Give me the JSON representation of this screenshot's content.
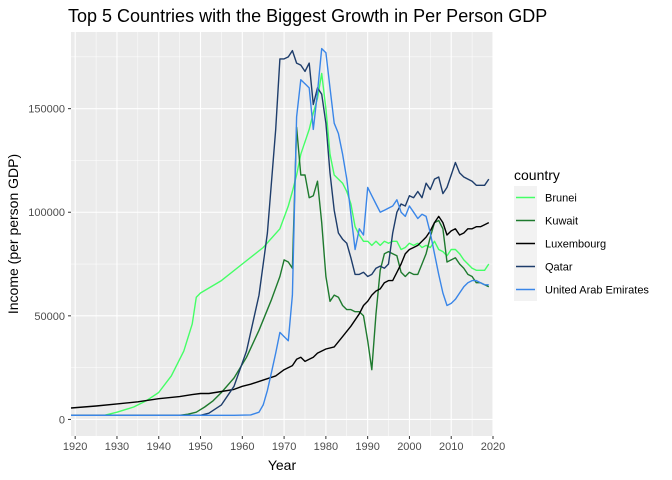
{
  "chart_data": {
    "type": "line",
    "title": "Top 5 Countries with the Biggest Growth in Per Person GDP",
    "xlabel": "Year",
    "ylabel": "Income (per person GDP)",
    "xlim": [
      1919,
      2020
    ],
    "ylim": [
      -8000,
      187000
    ],
    "x_ticks": [
      1920,
      1930,
      1940,
      1950,
      1960,
      1970,
      1980,
      1990,
      2000,
      2010,
      2020
    ],
    "y_ticks": [
      0,
      50000,
      100000,
      150000
    ],
    "y_tick_labels": [
      "0",
      "50000",
      "100000",
      "150000"
    ],
    "grid": true,
    "panel_background": "#ebebeb",
    "grid_color": "#ffffff",
    "legend": {
      "title": "country",
      "position": "right"
    },
    "series": [
      {
        "name": "Brunei",
        "color": "#44ff66",
        "points": [
          [
            1919,
            2000
          ],
          [
            1927,
            2000
          ],
          [
            1930,
            3500
          ],
          [
            1934,
            6000
          ],
          [
            1937,
            9000
          ],
          [
            1940,
            13000
          ],
          [
            1943,
            21000
          ],
          [
            1946,
            33000
          ],
          [
            1948,
            46000
          ],
          [
            1949,
            59000
          ],
          [
            1950,
            61000
          ],
          [
            1955,
            67000
          ],
          [
            1960,
            75000
          ],
          [
            1965,
            83000
          ],
          [
            1969,
            92000
          ],
          [
            1971,
            103000
          ],
          [
            1972,
            110000
          ],
          [
            1973,
            118000
          ],
          [
            1974,
            128000
          ],
          [
            1975,
            134000
          ],
          [
            1976,
            140000
          ],
          [
            1977,
            148000
          ],
          [
            1978,
            155000
          ],
          [
            1979,
            167000
          ],
          [
            1980,
            150000
          ],
          [
            1981,
            128000
          ],
          [
            1982,
            118000
          ],
          [
            1983,
            116000
          ],
          [
            1984,
            114000
          ],
          [
            1985,
            110000
          ],
          [
            1986,
            104000
          ],
          [
            1987,
            93000
          ],
          [
            1988,
            89000
          ],
          [
            1989,
            86000
          ],
          [
            1990,
            86000
          ],
          [
            1991,
            84000
          ],
          [
            1992,
            86000
          ],
          [
            1993,
            84000
          ],
          [
            1994,
            86000
          ],
          [
            1995,
            85000
          ],
          [
            1996,
            86000
          ],
          [
            1997,
            86000
          ],
          [
            1998,
            82000
          ],
          [
            1999,
            83000
          ],
          [
            2000,
            85000
          ],
          [
            2001,
            84000
          ],
          [
            2002,
            85000
          ],
          [
            2003,
            83000
          ],
          [
            2004,
            84000
          ],
          [
            2005,
            83000
          ],
          [
            2006,
            86000
          ],
          [
            2007,
            82000
          ],
          [
            2008,
            81000
          ],
          [
            2009,
            79000
          ],
          [
            2010,
            82000
          ],
          [
            2011,
            82000
          ],
          [
            2012,
            80000
          ],
          [
            2013,
            77000
          ],
          [
            2014,
            75000
          ],
          [
            2015,
            73000
          ],
          [
            2016,
            72000
          ],
          [
            2017,
            72000
          ],
          [
            2018,
            72000
          ],
          [
            2019,
            75000
          ]
        ]
      },
      {
        "name": "Kuwait",
        "color": "#1e7a2e",
        "points": [
          [
            1919,
            2000
          ],
          [
            1945,
            2000
          ],
          [
            1947,
            2500
          ],
          [
            1949,
            3500
          ],
          [
            1951,
            6000
          ],
          [
            1953,
            9000
          ],
          [
            1955,
            13000
          ],
          [
            1958,
            20000
          ],
          [
            1961,
            30000
          ],
          [
            1964,
            43000
          ],
          [
            1967,
            58000
          ],
          [
            1969,
            69000
          ],
          [
            1970,
            77000
          ],
          [
            1971,
            76000
          ],
          [
            1972,
            73000
          ],
          [
            1973,
            141000
          ],
          [
            1974,
            118000
          ],
          [
            1975,
            118000
          ],
          [
            1976,
            107000
          ],
          [
            1977,
            108000
          ],
          [
            1978,
            115000
          ],
          [
            1979,
            95000
          ],
          [
            1980,
            69000
          ],
          [
            1981,
            57000
          ],
          [
            1982,
            60000
          ],
          [
            1983,
            59000
          ],
          [
            1984,
            55000
          ],
          [
            1985,
            53000
          ],
          [
            1986,
            53000
          ],
          [
            1987,
            52000
          ],
          [
            1988,
            52000
          ],
          [
            1989,
            50000
          ],
          [
            1990,
            38000
          ],
          [
            1991,
            24000
          ],
          [
            1992,
            51000
          ],
          [
            1993,
            72000
          ],
          [
            1994,
            80000
          ],
          [
            1995,
            81000
          ],
          [
            1996,
            80000
          ],
          [
            1997,
            79000
          ],
          [
            1998,
            71000
          ],
          [
            1999,
            69000
          ],
          [
            2000,
            71000
          ],
          [
            2001,
            70000
          ],
          [
            2002,
            70000
          ],
          [
            2003,
            75000
          ],
          [
            2004,
            80000
          ],
          [
            2005,
            88000
          ],
          [
            2006,
            95000
          ],
          [
            2007,
            96000
          ],
          [
            2008,
            92000
          ],
          [
            2009,
            76000
          ],
          [
            2010,
            77000
          ],
          [
            2011,
            78000
          ],
          [
            2012,
            75000
          ],
          [
            2013,
            73000
          ],
          [
            2014,
            70000
          ],
          [
            2015,
            69000
          ],
          [
            2016,
            66000
          ],
          [
            2017,
            66000
          ],
          [
            2018,
            65000
          ],
          [
            2019,
            64000
          ]
        ]
      },
      {
        "name": "Luxembourg",
        "color": "#000000",
        "points": [
          [
            1919,
            5500
          ],
          [
            1925,
            6500
          ],
          [
            1930,
            7500
          ],
          [
            1935,
            8500
          ],
          [
            1940,
            10000
          ],
          [
            1945,
            11000
          ],
          [
            1948,
            12000
          ],
          [
            1950,
            12500
          ],
          [
            1952,
            12500
          ],
          [
            1955,
            13500
          ],
          [
            1958,
            14500
          ],
          [
            1960,
            16000
          ],
          [
            1962,
            17000
          ],
          [
            1965,
            19000
          ],
          [
            1968,
            21000
          ],
          [
            1970,
            24000
          ],
          [
            1972,
            26000
          ],
          [
            1973,
            29000
          ],
          [
            1974,
            30000
          ],
          [
            1975,
            28000
          ],
          [
            1976,
            29000
          ],
          [
            1977,
            30000
          ],
          [
            1978,
            32000
          ],
          [
            1980,
            34000
          ],
          [
            1982,
            35000
          ],
          [
            1984,
            40000
          ],
          [
            1986,
            45000
          ],
          [
            1988,
            51000
          ],
          [
            1989,
            55000
          ],
          [
            1990,
            57000
          ],
          [
            1991,
            60000
          ],
          [
            1992,
            62000
          ],
          [
            1993,
            63000
          ],
          [
            1994,
            66000
          ],
          [
            1995,
            67000
          ],
          [
            1996,
            67000
          ],
          [
            1997,
            71000
          ],
          [
            1998,
            75000
          ],
          [
            1999,
            80000
          ],
          [
            2000,
            82000
          ],
          [
            2001,
            83000
          ],
          [
            2002,
            84000
          ],
          [
            2003,
            86000
          ],
          [
            2004,
            88000
          ],
          [
            2005,
            91000
          ],
          [
            2006,
            95000
          ],
          [
            2007,
            98000
          ],
          [
            2008,
            95000
          ],
          [
            2009,
            89000
          ],
          [
            2010,
            91000
          ],
          [
            2011,
            92000
          ],
          [
            2012,
            89000
          ],
          [
            2013,
            90000
          ],
          [
            2014,
            92000
          ],
          [
            2015,
            92000
          ],
          [
            2016,
            93000
          ],
          [
            2017,
            93000
          ],
          [
            2018,
            94000
          ],
          [
            2019,
            95000
          ]
        ]
      },
      {
        "name": "Qatar",
        "color": "#1e3d6b",
        "points": [
          [
            1919,
            2000
          ],
          [
            1950,
            2000
          ],
          [
            1952,
            3000
          ],
          [
            1955,
            7000
          ],
          [
            1958,
            16000
          ],
          [
            1961,
            33000
          ],
          [
            1964,
            60000
          ],
          [
            1966,
            90000
          ],
          [
            1968,
            140000
          ],
          [
            1969,
            174000
          ],
          [
            1970,
            174000
          ],
          [
            1971,
            175000
          ],
          [
            1972,
            178000
          ],
          [
            1973,
            172000
          ],
          [
            1974,
            171000
          ],
          [
            1975,
            168000
          ],
          [
            1976,
            172000
          ],
          [
            1977,
            152000
          ],
          [
            1978,
            160000
          ],
          [
            1979,
            157000
          ],
          [
            1980,
            143000
          ],
          [
            1981,
            119000
          ],
          [
            1982,
            101000
          ],
          [
            1983,
            90000
          ],
          [
            1984,
            87000
          ],
          [
            1985,
            85000
          ],
          [
            1986,
            78000
          ],
          [
            1987,
            70000
          ],
          [
            1988,
            70000
          ],
          [
            1989,
            71000
          ],
          [
            1990,
            69000
          ],
          [
            1991,
            70000
          ],
          [
            1992,
            73000
          ],
          [
            1993,
            74000
          ],
          [
            1994,
            73000
          ],
          [
            1995,
            75000
          ],
          [
            1996,
            90000
          ],
          [
            1997,
            100000
          ],
          [
            1998,
            104000
          ],
          [
            1999,
            103000
          ],
          [
            2000,
            108000
          ],
          [
            2001,
            107000
          ],
          [
            2002,
            110000
          ],
          [
            2003,
            107000
          ],
          [
            2004,
            114000
          ],
          [
            2005,
            111000
          ],
          [
            2006,
            116000
          ],
          [
            2007,
            117000
          ],
          [
            2008,
            109000
          ],
          [
            2009,
            112000
          ],
          [
            2010,
            118000
          ],
          [
            2011,
            124000
          ],
          [
            2012,
            119000
          ],
          [
            2013,
            117000
          ],
          [
            2014,
            116000
          ],
          [
            2015,
            115000
          ],
          [
            2016,
            113000
          ],
          [
            2017,
            113000
          ],
          [
            2018,
            113000
          ],
          [
            2019,
            116000
          ]
        ]
      },
      {
        "name": "United Arab Emirates",
        "color": "#3a86e8",
        "points": [
          [
            1919,
            2000
          ],
          [
            1958,
            2000
          ],
          [
            1962,
            2200
          ],
          [
            1964,
            3500
          ],
          [
            1965,
            7000
          ],
          [
            1966,
            14000
          ],
          [
            1967,
            23000
          ],
          [
            1968,
            32000
          ],
          [
            1969,
            42000
          ],
          [
            1970,
            40000
          ],
          [
            1971,
            38000
          ],
          [
            1972,
            60000
          ],
          [
            1973,
            146000
          ],
          [
            1974,
            164000
          ],
          [
            1975,
            162000
          ],
          [
            1976,
            160000
          ],
          [
            1977,
            140000
          ],
          [
            1978,
            158000
          ],
          [
            1979,
            179000
          ],
          [
            1980,
            177000
          ],
          [
            1981,
            160000
          ],
          [
            1982,
            143000
          ],
          [
            1983,
            138000
          ],
          [
            1984,
            128000
          ],
          [
            1985,
            116000
          ],
          [
            1986,
            99000
          ],
          [
            1987,
            82000
          ],
          [
            1988,
            92000
          ],
          [
            1989,
            89000
          ],
          [
            1990,
            112000
          ],
          [
            1991,
            108000
          ],
          [
            1992,
            104000
          ],
          [
            1993,
            100000
          ],
          [
            1994,
            101000
          ],
          [
            1995,
            102000
          ],
          [
            1996,
            103000
          ],
          [
            1997,
            106000
          ],
          [
            1998,
            100000
          ],
          [
            1999,
            98000
          ],
          [
            2000,
            103000
          ],
          [
            2001,
            100000
          ],
          [
            2002,
            97000
          ],
          [
            2003,
            99000
          ],
          [
            2004,
            98000
          ],
          [
            2005,
            90000
          ],
          [
            2006,
            80000
          ],
          [
            2007,
            70000
          ],
          [
            2008,
            61000
          ],
          [
            2009,
            55000
          ],
          [
            2010,
            56000
          ],
          [
            2011,
            58000
          ],
          [
            2012,
            61000
          ],
          [
            2013,
            64000
          ],
          [
            2014,
            66000
          ],
          [
            2015,
            67000
          ],
          [
            2016,
            67000
          ],
          [
            2017,
            66000
          ],
          [
            2018,
            65000
          ],
          [
            2019,
            65000
          ]
        ]
      }
    ]
  }
}
